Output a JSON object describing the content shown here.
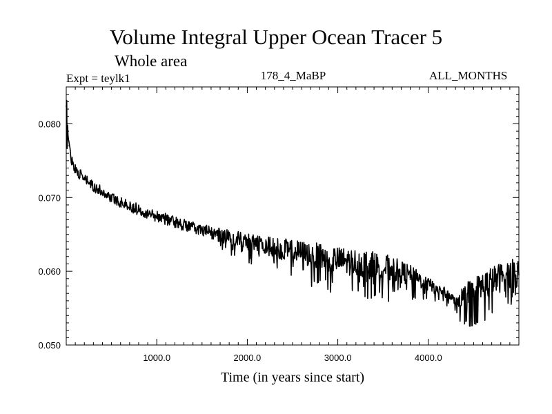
{
  "chart_data": {
    "type": "line",
    "title": "Volume Integral Upper Ocean Tracer 5",
    "subtitle": "Whole area",
    "annotations": {
      "experiment": "Expt = teylk1",
      "period": "178_4_MaBP",
      "months": "ALL_MONTHS"
    },
    "xlabel": "Time (in years since start)",
    "ylabel": "",
    "xlim": [
      0,
      5000
    ],
    "ylim": [
      0.05,
      0.085
    ],
    "x_ticks": [
      1000,
      2000,
      3000,
      4000
    ],
    "x_tick_labels": [
      "1000.0",
      "2000.0",
      "3000.0",
      "4000.0"
    ],
    "y_ticks": [
      0.05,
      0.06,
      0.07,
      0.08
    ],
    "y_tick_labels": [
      "0.050",
      "0.060",
      "0.070",
      "0.080"
    ],
    "grid": false,
    "series": [
      {
        "name": "Tracer 5 volume integral",
        "trend": {
          "x": [
            0,
            20,
            50,
            100,
            200,
            300,
            500,
            700,
            1000,
            1300,
            1600,
            2000,
            2300,
            2600,
            3000,
            3300,
            3600,
            3800,
            4000,
            4200,
            4300,
            4400,
            4600,
            4800,
            5000
          ],
          "y": [
            0.0825,
            0.0785,
            0.0755,
            0.0738,
            0.0725,
            0.0715,
            0.07,
            0.0688,
            0.0675,
            0.0663,
            0.0652,
            0.064,
            0.0632,
            0.0625,
            0.0615,
            0.061,
            0.0603,
            0.0595,
            0.0582,
            0.057,
            0.056,
            0.0565,
            0.058,
            0.0592,
            0.0598
          ]
        },
        "noise_amplitude": {
          "x": [
            0,
            1500,
            2200,
            2800,
            3500,
            4000,
            4300,
            4400,
            5000
          ],
          "y": [
            0.0012,
            0.0014,
            0.0022,
            0.003,
            0.0032,
            0.0016,
            0.0009,
            0.0032,
            0.0035
          ]
        },
        "sample_step_years": 5,
        "color": "#000000"
      }
    ]
  }
}
